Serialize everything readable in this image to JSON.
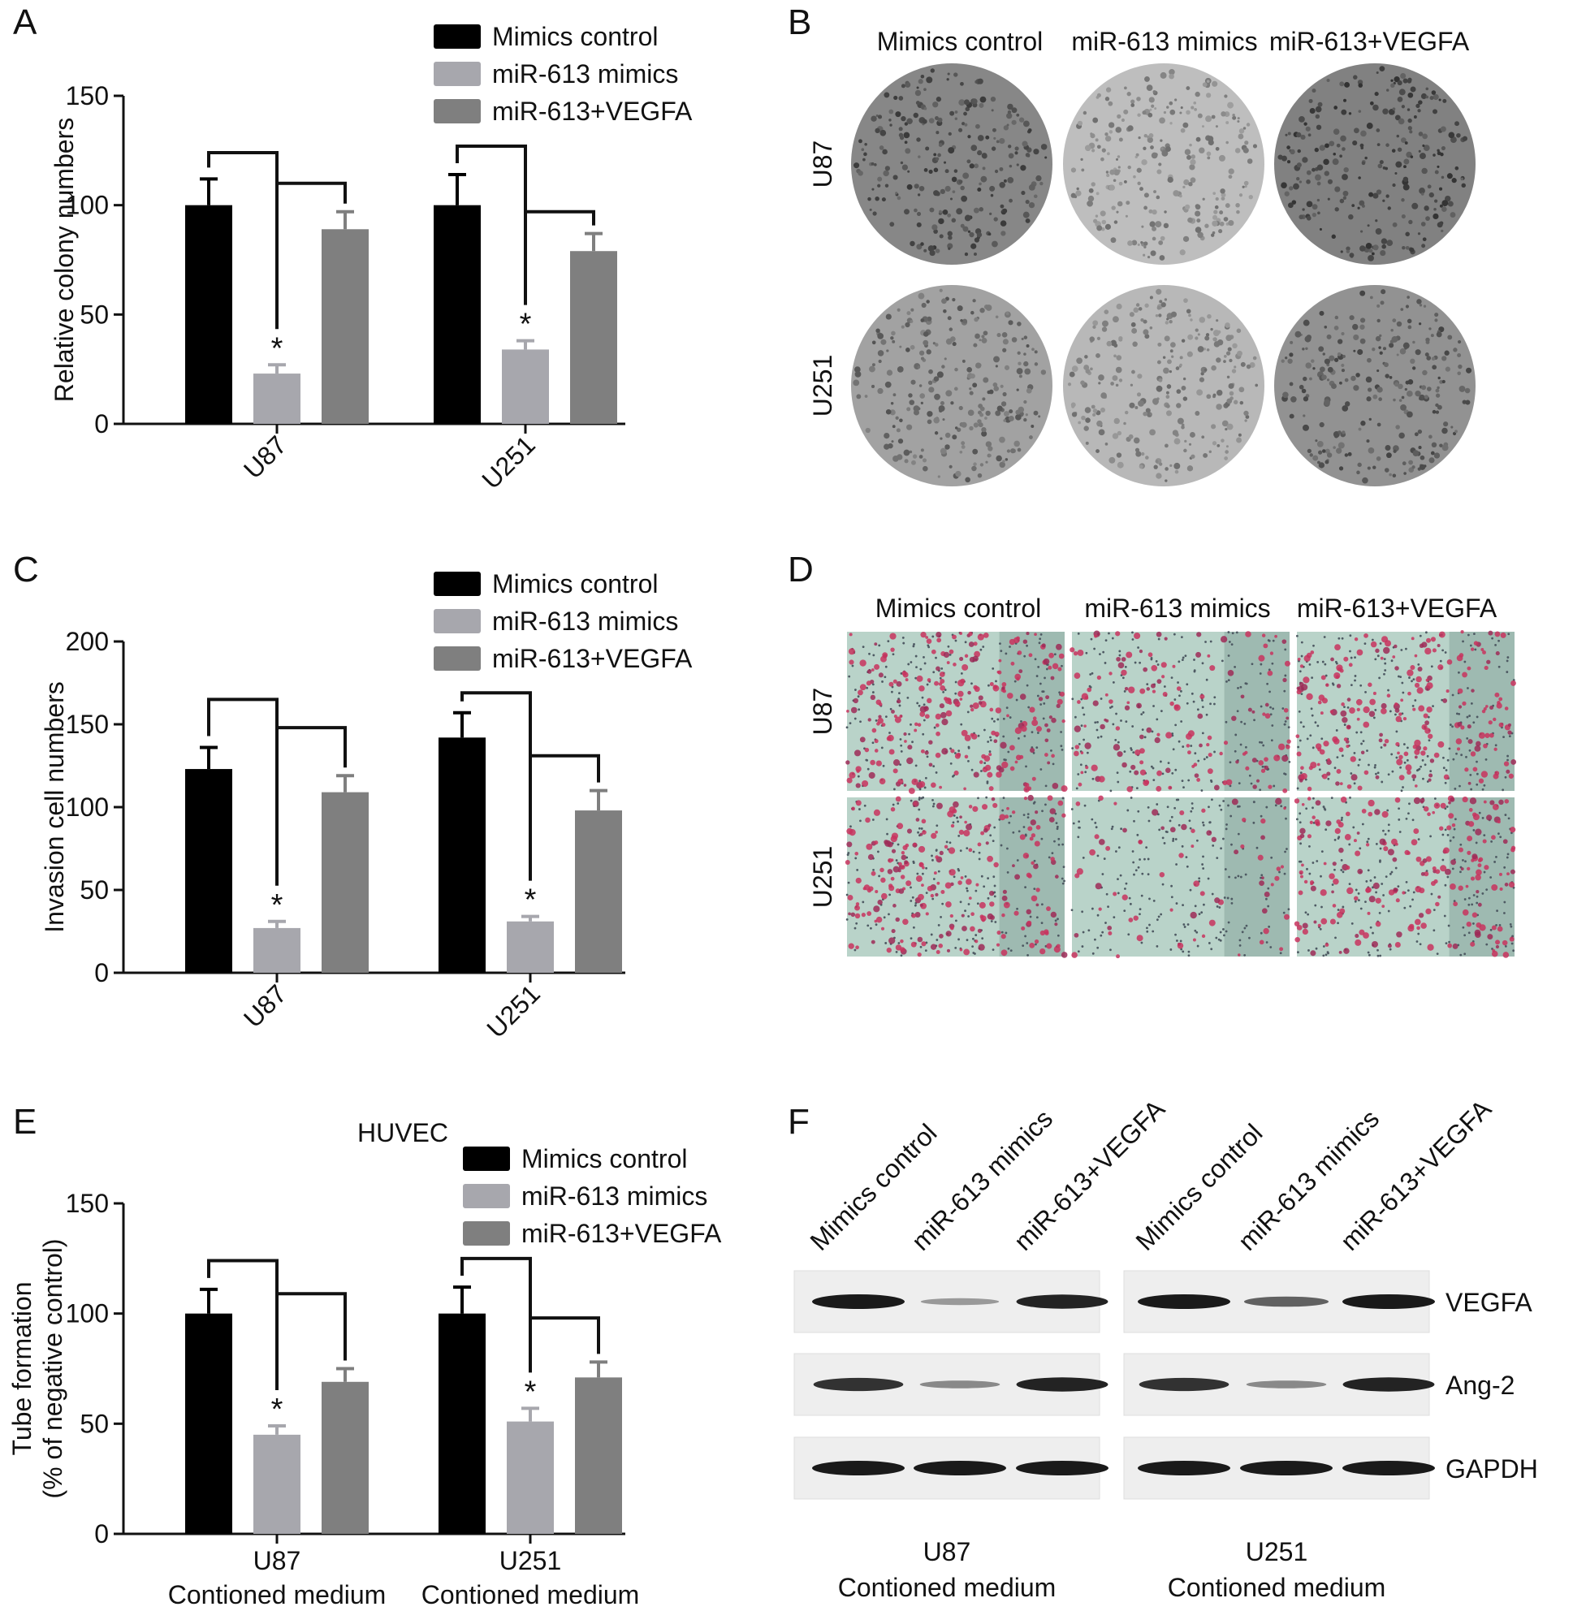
{
  "figure": {
    "panel_letters": [
      "A",
      "B",
      "C",
      "D",
      "E",
      "F"
    ],
    "legend": [
      "Mimics control",
      "miR-613 mimics",
      "miR-613+VEGFA"
    ],
    "colors": {
      "control": "#000000",
      "mimics": "#a7a7ad",
      "vegfa": "#7f7f7f"
    }
  },
  "chart_data": [
    {
      "panel": "A",
      "type": "bar",
      "categories": [
        "U87",
        "U251"
      ],
      "ylabel": "Relative colony numbers",
      "ylim": [
        0,
        150
      ],
      "yticks": [
        "0",
        "50",
        "100",
        "150"
      ],
      "series": [
        {
          "name": "Mimics control",
          "values": [
            100,
            100
          ],
          "errors": [
            12,
            14
          ]
        },
        {
          "name": "miR-613 mimics",
          "values": [
            23,
            34
          ],
          "errors": [
            4,
            4
          ]
        },
        {
          "name": "miR-613+VEGFA",
          "values": [
            89,
            79
          ],
          "errors": [
            8,
            8
          ]
        }
      ],
      "significance": "*"
    },
    {
      "panel": "C",
      "type": "bar",
      "categories": [
        "U87",
        "U251"
      ],
      "ylabel": "Invasion cell numbers",
      "ylim": [
        0,
        200
      ],
      "yticks": [
        "0",
        "50",
        "100",
        "150",
        "200"
      ],
      "series": [
        {
          "name": "Mimics control",
          "values": [
            123,
            142
          ],
          "errors": [
            13,
            15
          ]
        },
        {
          "name": "miR-613 mimics",
          "values": [
            27,
            31
          ],
          "errors": [
            4,
            3
          ]
        },
        {
          "name": "miR-613+VEGFA",
          "values": [
            109,
            98
          ],
          "errors": [
            10,
            12
          ]
        }
      ],
      "significance": "*"
    },
    {
      "panel": "E",
      "type": "bar",
      "title": "HUVEC",
      "categories": [
        "U87",
        "U251"
      ],
      "category_sublabel": "Contioned medium",
      "ylabel": "Tube formation",
      "ylabel2": "(% of negative control)",
      "ylim": [
        0,
        150
      ],
      "yticks": [
        "0",
        "50",
        "100",
        "150"
      ],
      "series": [
        {
          "name": "Mimics control",
          "values": [
            100,
            100
          ],
          "errors": [
            11,
            12
          ]
        },
        {
          "name": "miR-613 mimics",
          "values": [
            45,
            51
          ],
          "errors": [
            4,
            6
          ]
        },
        {
          "name": "miR-613+VEGFA",
          "values": [
            69,
            71
          ],
          "errors": [
            6,
            7
          ]
        }
      ],
      "significance": "*"
    }
  ],
  "panel_b": {
    "columns": [
      "Mimics control",
      "miR-613 mimics",
      "miR-613+VEGFA"
    ],
    "rows": [
      "U87",
      "U251"
    ],
    "density": [
      [
        0.85,
        0.35,
        0.9
      ],
      [
        0.6,
        0.4,
        0.75
      ]
    ]
  },
  "panel_d": {
    "columns": [
      "Mimics control",
      "miR-613 mimics",
      "miR-613+VEGFA"
    ],
    "rows": [
      "U87",
      "U251"
    ],
    "density": [
      [
        0.85,
        0.45,
        0.75
      ],
      [
        0.8,
        0.15,
        0.7
      ]
    ]
  },
  "panel_f": {
    "lanes": [
      "Mimics control",
      "miR-613 mimics",
      "miR-613+VEGFA",
      "Mimics control",
      "miR-613 mimics",
      "miR-613+VEGFA"
    ],
    "proteins": [
      "VEGFA",
      "Ang-2",
      "GAPDH"
    ],
    "groups": [
      {
        "line1": "U87",
        "line2": "Contioned medium"
      },
      {
        "line1": "U251",
        "line2": "Contioned medium"
      }
    ],
    "intensity": [
      [
        1.0,
        0.2,
        0.95,
        1.0,
        0.55,
        1.0
      ],
      [
        0.85,
        0.3,
        0.95,
        0.85,
        0.3,
        0.95
      ],
      [
        1.0,
        1.0,
        1.0,
        1.0,
        1.0,
        1.0
      ]
    ]
  }
}
